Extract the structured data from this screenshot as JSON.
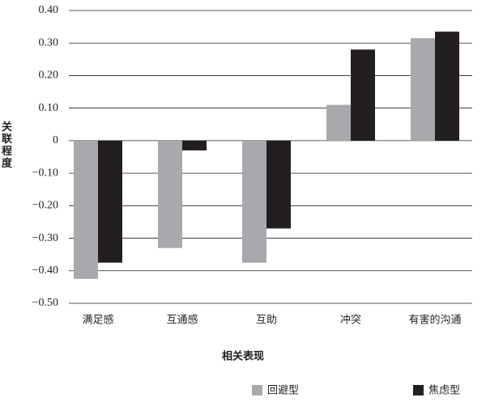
{
  "chart_data": {
    "type": "bar",
    "x_label": "相关表现",
    "y_label": "关联程度",
    "categories": [
      "满足感",
      "互通感",
      "互助",
      "冲突",
      "有害的沟通"
    ],
    "series": [
      {
        "name": "回避型",
        "color": "#a7a9ac",
        "values": [
          -0.425,
          -0.33,
          -0.375,
          0.11,
          0.315
        ]
      },
      {
        "name": "焦虑型",
        "color": "#231f20",
        "values": [
          -0.375,
          -0.03,
          -0.27,
          0.28,
          0.335
        ]
      }
    ],
    "ylim": [
      -0.5,
      0.4
    ],
    "yticks": [
      {
        "value": -0.5,
        "label": "−0.50"
      },
      {
        "value": -0.4,
        "label": "−0.40"
      },
      {
        "value": -0.3,
        "label": "−0.30"
      },
      {
        "value": -0.2,
        "label": "−0.20"
      },
      {
        "value": -0.1,
        "label": "−0.10"
      },
      0,
      {
        "value": 0.1,
        "label": "0.10"
      },
      {
        "value": 0.2,
        "label": "0.20"
      },
      {
        "value": 0.3,
        "label": "0.30"
      },
      {
        "value": 0.4,
        "label": "0.40"
      }
    ],
    "grid": true
  }
}
